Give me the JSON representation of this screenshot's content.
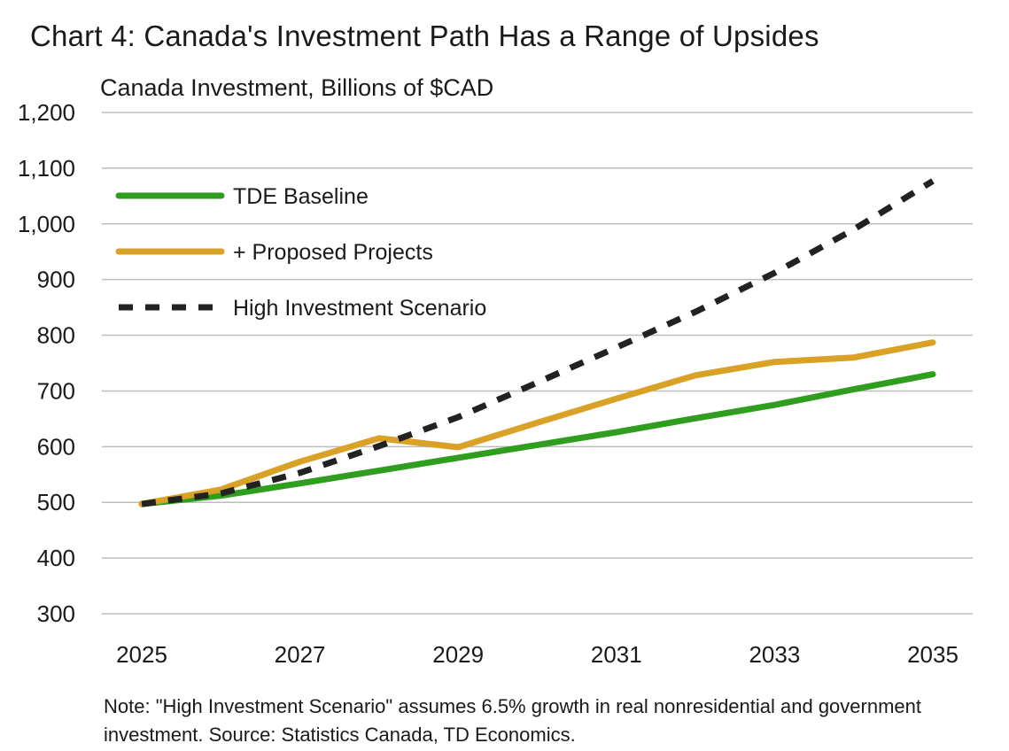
{
  "title": "Chart 4: Canada's Investment Path Has a Range of Upsides",
  "subtitle": "Canada Investment, Billions of $CAD",
  "note": "Note: \"High Investment Scenario\" assumes 6.5% growth in real nonresidential and government investment. Source: Statistics Canada, TD Economics.",
  "chart_data": {
    "type": "line",
    "x": [
      2025,
      2026,
      2027,
      2028,
      2029,
      2030,
      2031,
      2032,
      2033,
      2034,
      2035
    ],
    "xticks": [
      "2025",
      "2027",
      "2029",
      "2031",
      "2033",
      "2035"
    ],
    "xlim": [
      2025,
      2035
    ],
    "ylim": [
      300,
      1200
    ],
    "yticks": [
      "300",
      "400",
      "500",
      "600",
      "700",
      "800",
      "900",
      "1,000",
      "1,100",
      "1,200"
    ],
    "ytick_values": [
      300,
      400,
      500,
      600,
      700,
      800,
      900,
      1000,
      1100,
      1200
    ],
    "grid": "horizontal",
    "legend_position": "top-left",
    "series": [
      {
        "name": "TDE Baseline",
        "color": "#2f9e1f",
        "style": "solid",
        "values": [
          497,
          512,
          534,
          557,
          580,
          603,
          626,
          651,
          675,
          703,
          730
        ]
      },
      {
        "name": "+ Proposed Projects",
        "color": "#d9a126",
        "style": "solid",
        "values": [
          497,
          523,
          573,
          615,
          599,
          643,
          686,
          728,
          752,
          760,
          787
        ]
      },
      {
        "name": "High Investment Scenario",
        "color": "#222222",
        "style": "dashed",
        "values": [
          497,
          516,
          553,
          601,
          653,
          715,
          778,
          842,
          912,
          990,
          1077
        ]
      }
    ]
  }
}
